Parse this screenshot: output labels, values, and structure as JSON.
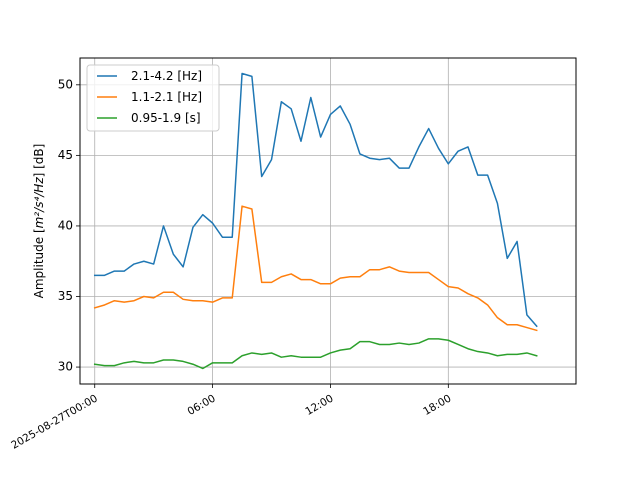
{
  "chart_data": {
    "type": "line",
    "title": "",
    "xlabel": "",
    "ylabel_prefix": "Amplitude [",
    "ylabel_math": "m²/s⁴/Hz",
    "ylabel_suffix": "] [dB]",
    "x_start": "2025-08-27T00:00",
    "x_step_hours": 0.5,
    "xlim": [
      "2025-08-26T23:15",
      "2025-08-28T00:30"
    ],
    "ylim": [
      28.8,
      51.9
    ],
    "grid": true,
    "legend_position": "top-left",
    "x_ticks": [
      {
        "label": "2025-08-27T00:00",
        "hour": 0
      },
      {
        "label": "06:00",
        "hour": 6
      },
      {
        "label": "12:00",
        "hour": 12
      },
      {
        "label": "18:00",
        "hour": 18
      }
    ],
    "y_ticks": [
      {
        "label": "30",
        "value": 30
      },
      {
        "label": "35",
        "value": 35
      },
      {
        "label": "40",
        "value": 40
      },
      {
        "label": "45",
        "value": 45
      },
      {
        "label": "50",
        "value": 50
      }
    ],
    "series": [
      {
        "name": "2.1-4.2 [Hz]",
        "color": "#1f77b4",
        "values": [
          36.5,
          36.5,
          36.8,
          36.8,
          37.3,
          37.5,
          37.3,
          40.0,
          38.0,
          37.1,
          39.9,
          40.8,
          40.2,
          39.2,
          39.2,
          50.8,
          50.6,
          43.5,
          44.7,
          48.8,
          48.3,
          46.0,
          49.1,
          46.3,
          47.9,
          48.5,
          47.2,
          45.1,
          44.8,
          44.7,
          44.8,
          44.1,
          44.1,
          45.6,
          46.9,
          45.5,
          44.4,
          45.3,
          45.6,
          43.6,
          43.6,
          41.6,
          37.7,
          38.9,
          33.7,
          32.9
        ]
      },
      {
        "name": "1.1-2.1 [Hz]",
        "color": "#ff7f0e",
        "values": [
          34.2,
          34.4,
          34.7,
          34.6,
          34.7,
          35.0,
          34.9,
          35.3,
          35.3,
          34.8,
          34.7,
          34.7,
          34.6,
          34.9,
          34.9,
          41.4,
          41.2,
          36.0,
          36.0,
          36.4,
          36.6,
          36.2,
          36.2,
          35.9,
          35.9,
          36.3,
          36.4,
          36.4,
          36.9,
          36.9,
          37.1,
          36.8,
          36.7,
          36.7,
          36.7,
          36.2,
          35.7,
          35.6,
          35.2,
          34.9,
          34.4,
          33.5,
          33.0,
          33.0,
          32.8,
          32.6
        ]
      },
      {
        "name": "0.95-1.9 [s]",
        "color": "#2ca02c",
        "values": [
          30.2,
          30.1,
          30.1,
          30.3,
          30.4,
          30.3,
          30.3,
          30.5,
          30.5,
          30.4,
          30.2,
          29.9,
          30.3,
          30.3,
          30.3,
          30.8,
          31.0,
          30.9,
          31.0,
          30.7,
          30.8,
          30.7,
          30.7,
          30.7,
          31.0,
          31.2,
          31.3,
          31.8,
          31.8,
          31.6,
          31.6,
          31.7,
          31.6,
          31.7,
          32.0,
          32.0,
          31.9,
          31.6,
          31.3,
          31.1,
          31.0,
          30.8,
          30.9,
          30.9,
          31.0,
          30.8
        ]
      }
    ]
  }
}
